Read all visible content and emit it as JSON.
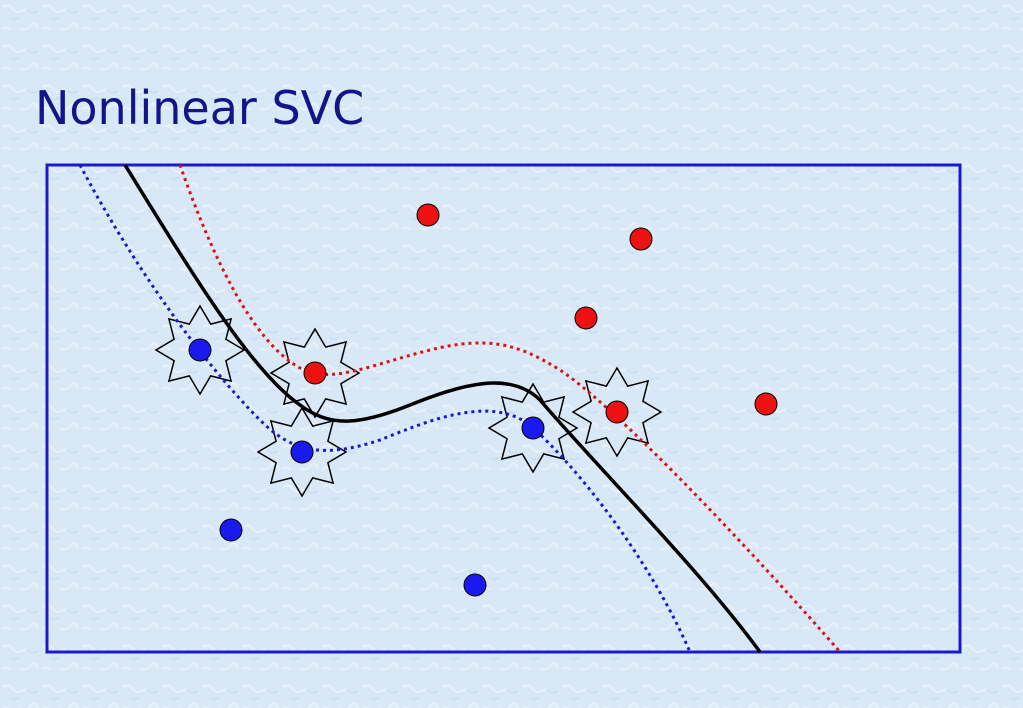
{
  "title": "Nonlinear SVC"
}
